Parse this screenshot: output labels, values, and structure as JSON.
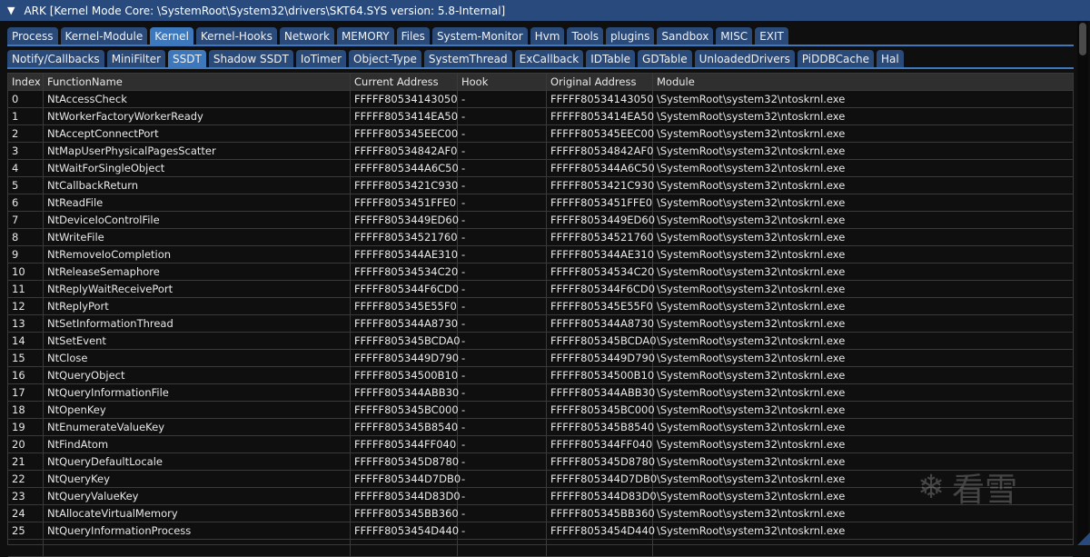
{
  "window": {
    "title": "ARK [Kernel Mode Core: \\SystemRoot\\System32\\drivers\\SKT64.SYS version: 5.8-Internal]"
  },
  "main_tabs": [
    "Process",
    "Kernel-Module",
    "Kernel",
    "Kernel-Hooks",
    "Network",
    "MEMORY",
    "Files",
    "System-Monitor",
    "Hvm",
    "Tools",
    "plugins",
    "Sandbox",
    "MISC",
    "EXIT"
  ],
  "main_tab_active": "Kernel",
  "sub_tabs": [
    "Notify/Callbacks",
    "MiniFilter",
    "SSDT",
    "Shadow SSDT",
    "IoTimer",
    "Object-Type",
    "SystemThread",
    "ExCallback",
    "IDTable",
    "GDTable",
    "UnloadedDrivers",
    "PiDDBCache",
    "Hal"
  ],
  "sub_tab_active": "SSDT",
  "table": {
    "columns": [
      "Index",
      "FunctionName",
      "Current Address",
      "Hook",
      "Original Address",
      "Module"
    ],
    "rows": [
      [
        "0",
        "NtAccessCheck",
        "FFFFF80534143050",
        "-",
        "FFFFF80534143050",
        "\\SystemRoot\\system32\\ntoskrnl.exe"
      ],
      [
        "1",
        "NtWorkerFactoryWorkerReady",
        "FFFFF8053414EA50",
        "-",
        "FFFFF8053414EA50",
        "\\SystemRoot\\system32\\ntoskrnl.exe"
      ],
      [
        "2",
        "NtAcceptConnectPort",
        "FFFFF805345EEC00",
        "-",
        "FFFFF805345EEC00",
        "\\SystemRoot\\system32\\ntoskrnl.exe"
      ],
      [
        "3",
        "NtMapUserPhysicalPagesScatter",
        "FFFFF80534842AF0",
        "-",
        "FFFFF80534842AF0",
        "\\SystemRoot\\system32\\ntoskrnl.exe"
      ],
      [
        "4",
        "NtWaitForSingleObject",
        "FFFFF805344A6C50",
        "-",
        "FFFFF805344A6C50",
        "\\SystemRoot\\system32\\ntoskrnl.exe"
      ],
      [
        "5",
        "NtCallbackReturn",
        "FFFFF8053421C930",
        "-",
        "FFFFF8053421C930",
        "\\SystemRoot\\system32\\ntoskrnl.exe"
      ],
      [
        "6",
        "NtReadFile",
        "FFFFF8053451FFE0",
        "-",
        "FFFFF8053451FFE0",
        "\\SystemRoot\\system32\\ntoskrnl.exe"
      ],
      [
        "7",
        "NtDeviceIoControlFile",
        "FFFFF8053449ED60",
        "-",
        "FFFFF8053449ED60",
        "\\SystemRoot\\system32\\ntoskrnl.exe"
      ],
      [
        "8",
        "NtWriteFile",
        "FFFFF80534521760",
        "-",
        "FFFFF80534521760",
        "\\SystemRoot\\system32\\ntoskrnl.exe"
      ],
      [
        "9",
        "NtRemoveIoCompletion",
        "FFFFF805344AE310",
        "-",
        "FFFFF805344AE310",
        "\\SystemRoot\\system32\\ntoskrnl.exe"
      ],
      [
        "10",
        "NtReleaseSemaphore",
        "FFFFF80534534C20",
        "-",
        "FFFFF80534534C20",
        "\\SystemRoot\\system32\\ntoskrnl.exe"
      ],
      [
        "11",
        "NtReplyWaitReceivePort",
        "FFFFF805344F6CD0",
        "-",
        "FFFFF805344F6CD0",
        "\\SystemRoot\\system32\\ntoskrnl.exe"
      ],
      [
        "12",
        "NtReplyPort",
        "FFFFF805345E55F0",
        "-",
        "FFFFF805345E55F0",
        "\\SystemRoot\\system32\\ntoskrnl.exe"
      ],
      [
        "13",
        "NtSetInformationThread",
        "FFFFF805344A8730",
        "-",
        "FFFFF805344A8730",
        "\\SystemRoot\\system32\\ntoskrnl.exe"
      ],
      [
        "14",
        "NtSetEvent",
        "FFFFF805345BCDA0",
        "-",
        "FFFFF805345BCDA0",
        "\\SystemRoot\\system32\\ntoskrnl.exe"
      ],
      [
        "15",
        "NtClose",
        "FFFFF8053449D790",
        "-",
        "FFFFF8053449D790",
        "\\SystemRoot\\system32\\ntoskrnl.exe"
      ],
      [
        "16",
        "NtQueryObject",
        "FFFFF80534500B10",
        "-",
        "FFFFF80534500B10",
        "\\SystemRoot\\system32\\ntoskrnl.exe"
      ],
      [
        "17",
        "NtQueryInformationFile",
        "FFFFF805344ABB30",
        "-",
        "FFFFF805344ABB30",
        "\\SystemRoot\\system32\\ntoskrnl.exe"
      ],
      [
        "18",
        "NtOpenKey",
        "FFFFF805345BC000",
        "-",
        "FFFFF805345BC000",
        "\\SystemRoot\\system32\\ntoskrnl.exe"
      ],
      [
        "19",
        "NtEnumerateValueKey",
        "FFFFF805345B8540",
        "-",
        "FFFFF805345B8540",
        "\\SystemRoot\\system32\\ntoskrnl.exe"
      ],
      [
        "20",
        "NtFindAtom",
        "FFFFF805344FF040",
        "-",
        "FFFFF805344FF040",
        "\\SystemRoot\\system32\\ntoskrnl.exe"
      ],
      [
        "21",
        "NtQueryDefaultLocale",
        "FFFFF805345D8780",
        "-",
        "FFFFF805345D8780",
        "\\SystemRoot\\system32\\ntoskrnl.exe"
      ],
      [
        "22",
        "NtQueryKey",
        "FFFFF805344D7DB0",
        "-",
        "FFFFF805344D7DB0",
        "\\SystemRoot\\system32\\ntoskrnl.exe"
      ],
      [
        "23",
        "NtQueryValueKey",
        "FFFFF805344D83D0",
        "-",
        "FFFFF805344D83D0",
        "\\SystemRoot\\system32\\ntoskrnl.exe"
      ],
      [
        "24",
        "NtAllocateVirtualMemory",
        "FFFFF805345BB360",
        "-",
        "FFFFF805345BB360",
        "\\SystemRoot\\system32\\ntoskrnl.exe"
      ],
      [
        "25",
        "NtQueryInformationProcess",
        "FFFFF8053454D440",
        "-",
        "FFFFF8053454D440",
        "\\SystemRoot\\system32\\ntoskrnl.exe"
      ]
    ]
  },
  "watermark": {
    "text": "看雪",
    "icon": "snowflake-icon"
  },
  "colors": {
    "accent": "#3d78bd",
    "tab": "#2a4a7a",
    "titlebar": "#284a7c",
    "background": "#0f0f0f"
  }
}
